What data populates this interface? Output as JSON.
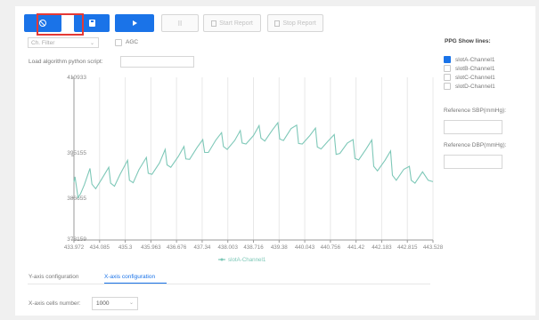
{
  "toolbar": {
    "stop_icon": "stop-icon",
    "save_icon": "save-icon",
    "play_icon": "play-icon",
    "pause_icon": "pause-icon",
    "start_report": "Start Report",
    "stop_report": "Stop Report"
  },
  "controls": {
    "channel_select": "Ch. Filter",
    "agc_label": "AGC",
    "algorithm_label": "Load algorithm python script:",
    "algorithm_value": ""
  },
  "side": {
    "title": "PPG Show lines:",
    "lines": [
      {
        "label": "slotA-Channel1",
        "checked": true
      },
      {
        "label": "slotB-Channel1",
        "checked": false
      },
      {
        "label": "slotC-Channel1",
        "checked": false
      },
      {
        "label": "slotD-Channel1",
        "checked": false
      }
    ],
    "sbp_label": "Reference SBP(mmHg):",
    "sbp_value": "",
    "dbp_label": "Reference DBP(mmHg):",
    "dbp_value": ""
  },
  "chart_data": {
    "type": "line",
    "ylim": [
      378159,
      410933
    ],
    "xlim": [
      433.972,
      443.528
    ],
    "ytick_labels": [
      "410933",
      "395155",
      "386655",
      "378159"
    ],
    "xtick_labels": [
      "433.972",
      "434.085",
      "435.3",
      "435.963",
      "436.676",
      "437.34",
      "438.003",
      "438.716",
      "439.38",
      "440.043",
      "440.756",
      "441.42",
      "442.183",
      "442.815",
      "443.528"
    ],
    "legend": "slotA-Channel1",
    "line_color": "#7ec8b8",
    "series": [
      {
        "name": "slotA-Channel1",
        "x": [
          433.972,
          434.0,
          434.08,
          434.15,
          434.25,
          434.4,
          434.45,
          434.55,
          434.7,
          434.9,
          434.95,
          435.05,
          435.2,
          435.4,
          435.45,
          435.55,
          435.7,
          435.9,
          435.95,
          436.05,
          436.25,
          436.4,
          436.45,
          436.55,
          436.75,
          436.9,
          436.95,
          437.05,
          437.25,
          437.4,
          437.45,
          437.55,
          437.75,
          437.9,
          437.95,
          438.05,
          438.25,
          438.4,
          438.45,
          438.55,
          438.75,
          438.9,
          438.95,
          439.05,
          439.25,
          439.4,
          439.45,
          439.55,
          439.75,
          439.9,
          439.95,
          440.05,
          440.25,
          440.4,
          440.45,
          440.55,
          440.75,
          440.9,
          440.95,
          441.05,
          441.25,
          441.4,
          441.45,
          441.55,
          441.75,
          441.9,
          441.95,
          442.05,
          442.25,
          442.4,
          442.45,
          442.55,
          442.75,
          442.9,
          442.95,
          443.05,
          443.25,
          443.4,
          443.528
        ],
        "y": [
          389800,
          390900,
          386700,
          387500,
          389300,
          392600,
          389400,
          388500,
          390300,
          392800,
          389600,
          389000,
          391400,
          394200,
          390200,
          389700,
          392300,
          394800,
          391600,
          391400,
          393700,
          396400,
          393300,
          392800,
          395000,
          397000,
          394500,
          394400,
          396800,
          398400,
          395800,
          395800,
          398300,
          399800,
          397000,
          396400,
          398200,
          400200,
          397700,
          397500,
          399200,
          401200,
          398700,
          398100,
          400300,
          401800,
          398500,
          398200,
          400600,
          401300,
          397600,
          397500,
          399200,
          400700,
          396900,
          396500,
          398200,
          399400,
          395400,
          395600,
          397700,
          398400,
          394600,
          394300,
          396500,
          398300,
          393000,
          392100,
          394200,
          396100,
          391200,
          390200,
          392400,
          393000,
          390200,
          389600,
          391900,
          390200,
          389900
        ]
      }
    ]
  },
  "tabs": {
    "y_axis": "Y-axis configuration",
    "x_axis": "X-axis configuration"
  },
  "xconfig": {
    "label": "X-axis cells number:",
    "value": "1000"
  }
}
